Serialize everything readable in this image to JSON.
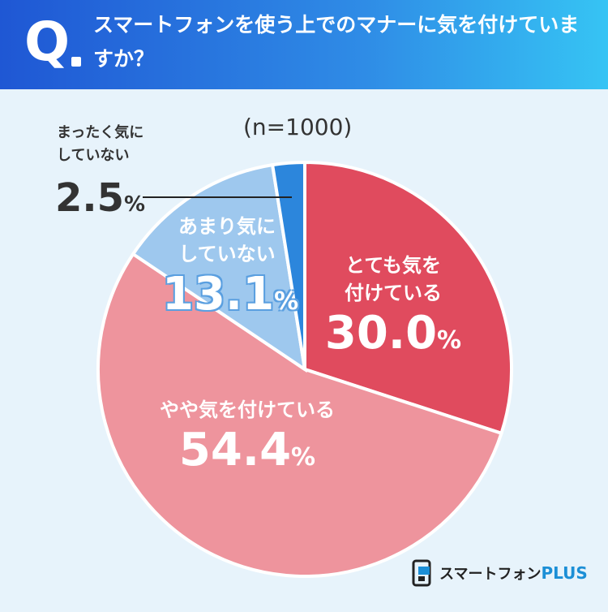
{
  "header": {
    "q_letter": "Q",
    "question": "スマートフォンを使う上でのマナーに気を付けていますか？"
  },
  "chart_data": {
    "type": "pie",
    "note": "(n=1000)",
    "slices": [
      {
        "label": "とても気を付けている",
        "value": 30.0,
        "color": "#e04b5e"
      },
      {
        "label": "やや気を付けている",
        "value": 54.4,
        "color": "#ee949d"
      },
      {
        "label": "あまり気にしていない",
        "value": 13.1,
        "color": "#9ec8ee"
      },
      {
        "label": "まったく気にしていない",
        "value": 2.5,
        "color": "#2c86dc"
      }
    ]
  },
  "labels": {
    "very_line1": "とても気を",
    "very_line2": "付けている",
    "very_value": "30.0",
    "some": "やや気を付けている",
    "some_value": "54.4",
    "notmuch_line1": "あまり気に",
    "notmuch_line2": "していない",
    "notmuch_value": "13.1",
    "notatall_line1": "まったく気に",
    "notatall_line2": "していない",
    "notatall_value": "2.5",
    "percent": "%"
  },
  "logo": {
    "name": "スマートフォン",
    "plus": "PLUS"
  }
}
